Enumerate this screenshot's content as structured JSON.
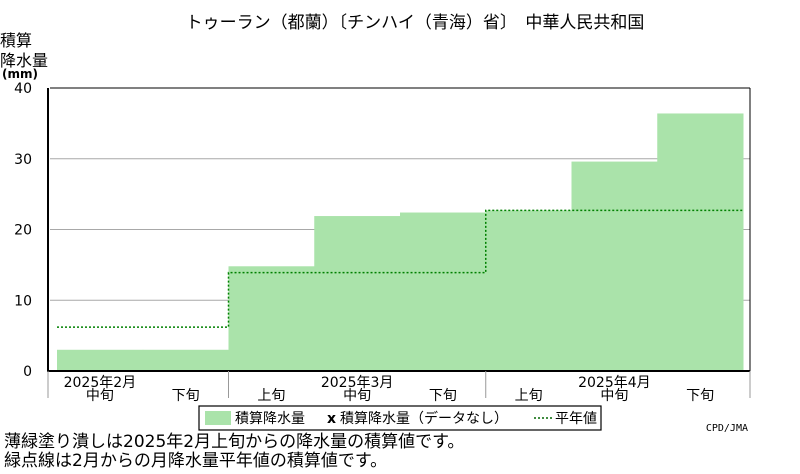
{
  "chart_data": {
    "type": "area",
    "title": "トゥーラン（都蘭）〔チンハイ（青海）省〕　中華人民共和国",
    "ylabel_lines": [
      "積算",
      "降水量"
    ],
    "yunit": "(mm)",
    "ylim": [
      0,
      40
    ],
    "yticks": [
      0,
      10,
      20,
      30,
      40
    ],
    "grid": true,
    "periods": [
      "中旬",
      "下旬",
      "上旬",
      "中旬",
      "下旬",
      "上旬",
      "中旬",
      "下旬"
    ],
    "months": [
      {
        "label": "2025年2月",
        "period_index": 0
      },
      {
        "label": "2025年3月",
        "period_index": 3
      },
      {
        "label": "2025年4月",
        "period_index": 6
      }
    ],
    "series": [
      {
        "name": "積算降水量",
        "type": "step-area",
        "color": "#aae3aa",
        "values": [
          3,
          3,
          14.8,
          21.9,
          22.4,
          22.7,
          29.6,
          36.4
        ]
      },
      {
        "name": "平年値",
        "type": "step-line",
        "color": "#008000",
        "values": [
          6.2,
          6.2,
          13.9,
          13.9,
          13.9,
          22.7,
          22.7,
          22.7
        ]
      }
    ]
  },
  "legend": {
    "items": [
      {
        "marker": "fill",
        "label": "積算降水量"
      },
      {
        "marker": "x",
        "label": "積算降水量（データなし）"
      },
      {
        "marker": "dotted-line",
        "label": "平年値"
      }
    ]
  },
  "credit": "CPD/JMA",
  "notes": [
    "薄緑塗り潰しは2025年2月上旬からの降水量の積算値です。",
    "緑点線は2月からの月降水量平年値の積算値です。"
  ]
}
